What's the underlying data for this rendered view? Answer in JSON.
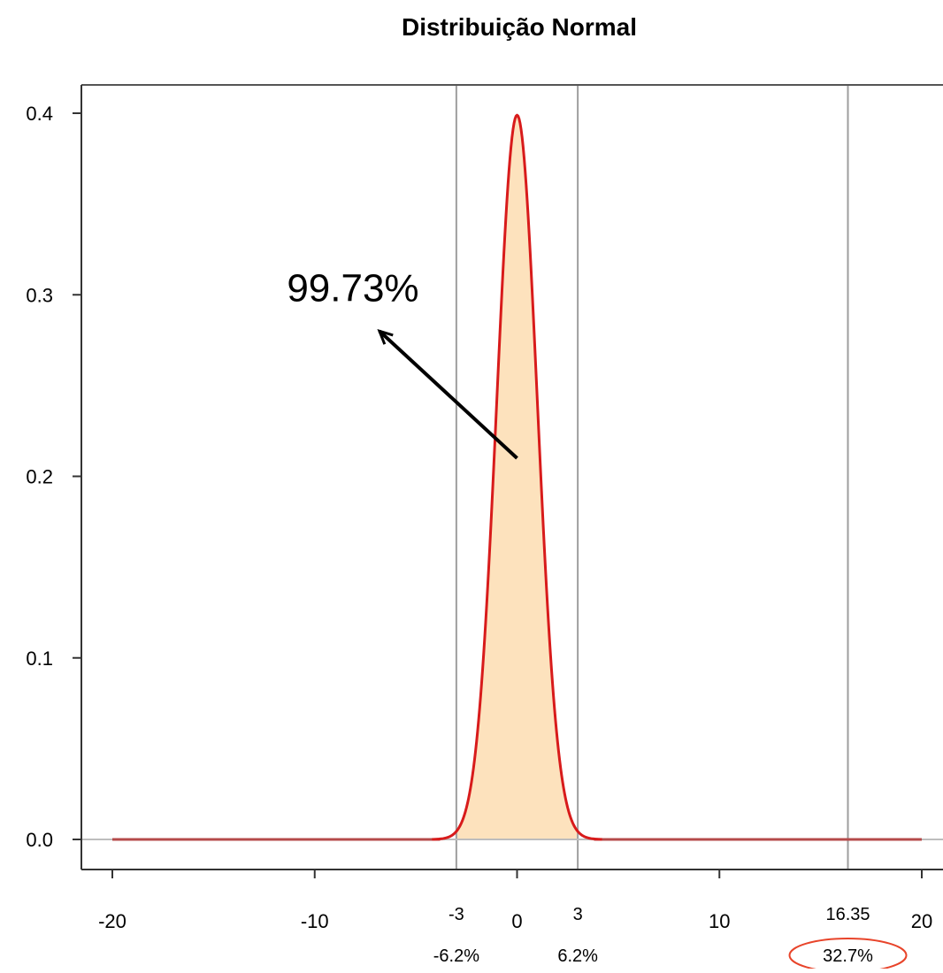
{
  "chart_data": {
    "type": "area",
    "title": "Distribuição Normal",
    "xlabel": "",
    "ylabel": "",
    "distribution": {
      "mean": 0,
      "sd": 1
    },
    "xlim": [
      -20,
      20
    ],
    "ylim": [
      0,
      0.4
    ],
    "x_ticks": [
      -20,
      -10,
      0,
      10,
      20
    ],
    "x_tick_labels": [
      "-20",
      "-10",
      "0",
      "10",
      "20"
    ],
    "y_ticks": [
      0.0,
      0.1,
      0.2,
      0.3,
      0.4
    ],
    "y_tick_labels": [
      "0.0",
      "0.1",
      "0.2",
      "0.3",
      "0.4"
    ],
    "shaded_region": {
      "from": -3,
      "to": 3
    },
    "vertical_lines": [
      {
        "x": -3,
        "label": "-3",
        "pct_label": "-6.2%"
      },
      {
        "x": 3,
        "label": "3",
        "pct_label": "6.2%"
      },
      {
        "x": 16.35,
        "label": "16.35",
        "pct_label": "32.7%",
        "pct_circled": true
      }
    ],
    "annotation": {
      "text": "99.73%",
      "arrow_from": {
        "x": 0,
        "y": 0.21
      },
      "arrow_to": {
        "x": -6.8,
        "y": 0.28
      }
    },
    "grid": false,
    "legend": "none",
    "colors": {
      "curve": "#d81b1b",
      "fill": "#fde2bd",
      "vline": "#9e9e9e",
      "baseline": "#bdbdbd",
      "circle": "#e8442a",
      "tail": "#b54a4a"
    }
  }
}
